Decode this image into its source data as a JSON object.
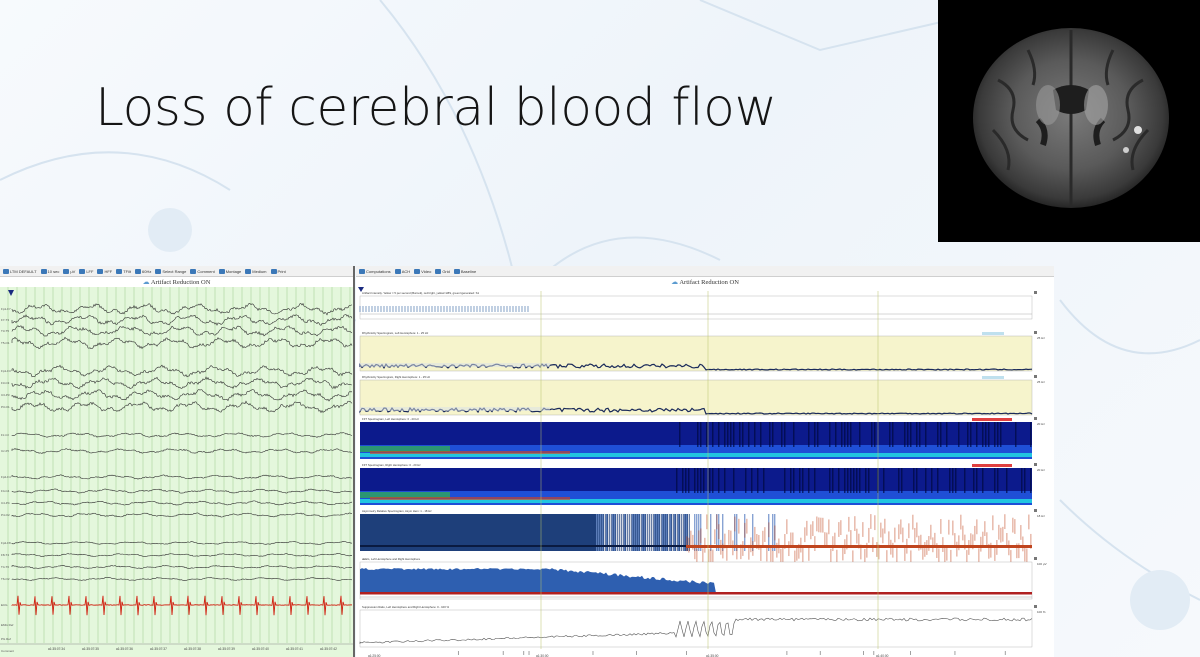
{
  "slide": {
    "title": "Loss of cerebral blood flow"
  },
  "mri": {
    "alt_icon": "brain-dwi-mri-image"
  },
  "eeg_panel": {
    "toolbar": [
      "LTM DEFAULT",
      "10 sec",
      "μV",
      "LFF",
      "HFF",
      "TFilt",
      "60Hz",
      "Select Range",
      "Comment",
      "Montage",
      "Medium",
      "Print"
    ],
    "artifact_label": "Artifact Reduction ON",
    "channel_labels": [
      "Fp1-F7",
      "F7-T3",
      "T3-T5",
      "T5-O1",
      "Fp1-F3",
      "F3-C3",
      "C3-P3",
      "P3-O1",
      "Fz-Cz",
      "Cz-Pz",
      "Fp2-F4",
      "F4-C4",
      "C4-P4",
      "P4-O2",
      "Fp2-F8",
      "F8-T4",
      "T4-T6",
      "T6-O2",
      "ECG",
      "EMG Ref",
      "PG Ref",
      "Comment"
    ],
    "time_labels": [
      "a1:35:07:34",
      "a1:35:07:35",
      "a1:35:07:36",
      "a1:35:07:37",
      "a1:35:07:38",
      "a1:35:07:39",
      "a1:35:07:40",
      "a1:35:07:41",
      "a1:35:07:42"
    ],
    "colors": {
      "background": "#e4f7dc",
      "trace": "#303030",
      "ecg": "#d02010",
      "grid": "#9acb8a"
    }
  },
  "trend_panel": {
    "toolbar": [
      "Computations",
      "ACH",
      "Video",
      "Grid",
      "Baseline"
    ],
    "artifact_label": "Artifact Reduction ON",
    "rows": [
      {
        "title": "Artifact Intensity. Yellow = 5 per second (Burnett), red=right, yellow=LBS, green=generated: S1",
        "right_label": ""
      },
      {
        "title": "Rhythmicity Spectrogram, Left Hemisphere: 1 - 25 Hz",
        "right_label": "25 Hz"
      },
      {
        "title": "Rhythmicity Spectrogram, Right Hemisphere: 1 - 25 Hz",
        "right_label": "25 Hz"
      },
      {
        "title": "FFT Spectrogram, Left Hemisphere: 0 - 20 Hz",
        "right_label": "20 Hz"
      },
      {
        "title": "FFT Spectrogram, Right Hemisphere: 0 - 20 Hz",
        "right_label": "20 Hz"
      },
      {
        "title": "Asymmetry Relative Spectrogram, Asym Hem: 1 - 18 Hz",
        "right_label": "18 Hz"
      },
      {
        "title": "aEEG, Left Hemisphere and Right Hemisphere",
        "right_label": "100 μV"
      },
      {
        "title": "Suppression Ratio, Left Hemisphere and Right Hemisphere: 0 - 100 %",
        "right_label": "100 %"
      }
    ],
    "time_labels": [
      "a1:25:00",
      "a1:30:00",
      "a1:35:00",
      "a1:40:00"
    ],
    "colors": {
      "rhythm_bg": "#f6f4cc",
      "fft_bg": "#0c1a8c",
      "asym_blue": "#1e3f7a",
      "asym_red": "#c0451e",
      "aeeg_blue": "#2e5fb0",
      "aeeg_red": "#b02020"
    }
  }
}
